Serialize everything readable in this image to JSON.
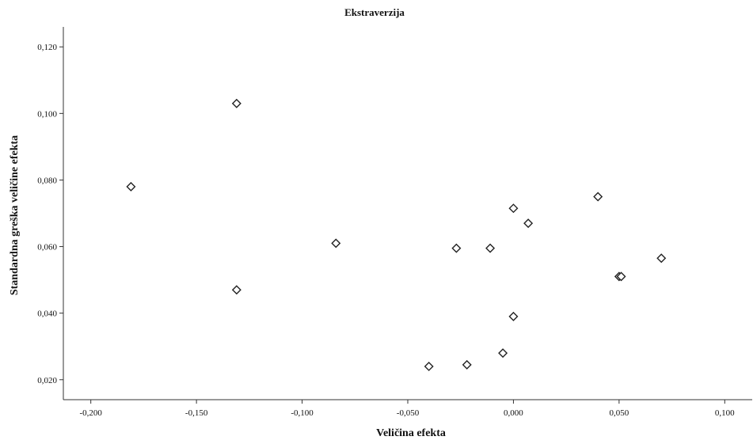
{
  "chart_data": {
    "type": "scatter",
    "title": "Ekstraverzija",
    "xlabel": "Veličina efekta",
    "ylabel": "Standardna greška veličine efekta",
    "xlim": [
      -0.213,
      0.113
    ],
    "ylim": [
      0.014,
      0.126
    ],
    "x_ticks": [
      -0.2,
      -0.15,
      -0.1,
      -0.05,
      0.0,
      0.05,
      0.1
    ],
    "x_tick_labels": [
      "-0,200",
      "-0,150",
      "-0,100",
      "-0,050",
      "0,000",
      "0,050",
      "0,100"
    ],
    "y_ticks": [
      0.02,
      0.04,
      0.06,
      0.08,
      0.1,
      0.12
    ],
    "y_tick_labels": [
      "0,020",
      "0,040",
      "0,060",
      "0,080",
      "0,100",
      "0,120"
    ],
    "grid": false,
    "marker": "diamond-open",
    "points": [
      {
        "x": -0.181,
        "y": 0.078
      },
      {
        "x": -0.131,
        "y": 0.103
      },
      {
        "x": -0.131,
        "y": 0.047
      },
      {
        "x": -0.084,
        "y": 0.061
      },
      {
        "x": -0.04,
        "y": 0.024
      },
      {
        "x": -0.027,
        "y": 0.0595
      },
      {
        "x": -0.022,
        "y": 0.0245
      },
      {
        "x": -0.011,
        "y": 0.0595
      },
      {
        "x": -0.005,
        "y": 0.028
      },
      {
        "x": 0.0,
        "y": 0.0715
      },
      {
        "x": 0.0,
        "y": 0.039
      },
      {
        "x": 0.007,
        "y": 0.067
      },
      {
        "x": 0.04,
        "y": 0.075
      },
      {
        "x": 0.05,
        "y": 0.051
      },
      {
        "x": 0.051,
        "y": 0.051
      },
      {
        "x": 0.07,
        "y": 0.0565
      }
    ]
  }
}
